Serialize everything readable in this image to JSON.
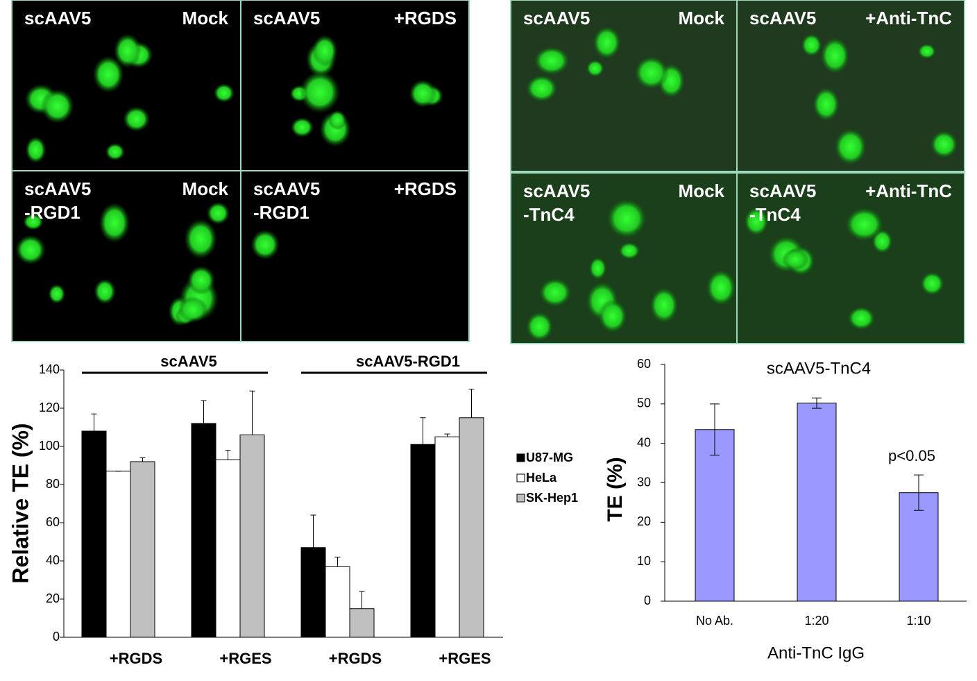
{
  "panels": [
    {
      "label_left": [
        "scAAV5"
      ],
      "label_right": "Mock"
    },
    {
      "label_left": [
        "scAAV5"
      ],
      "label_right": "+RGDS"
    },
    {
      "label_left": [
        "scAAV5",
        "-RGD1"
      ],
      "label_right": "Mock"
    },
    {
      "label_left": [
        "scAAV5",
        "-RGD1"
      ],
      "label_right": "+RGDS"
    },
    {
      "label_left": [
        "scAAV5"
      ],
      "label_right": "Mock"
    },
    {
      "label_left": [
        "scAAV5"
      ],
      "label_right": "+Anti-TnC"
    },
    {
      "label_left": [
        "scAAV5",
        "-TnC4"
      ],
      "label_right": "Mock"
    },
    {
      "label_left": [
        "scAAV5",
        "-TnC4"
      ],
      "label_right": "+Anti-TnC"
    }
  ],
  "chart_data": [
    {
      "type": "bar",
      "ylabel": "Relative TE (%)",
      "categories": [
        "+RGDS",
        "+RGES",
        "+RGDS",
        "+RGES"
      ],
      "group_labels": [
        "scAAV5",
        "scAAV5-RGD1"
      ],
      "series": [
        {
          "name": "U87-MG",
          "color": "#000000",
          "values": [
            108,
            112,
            47,
            101
          ],
          "errors": [
            9,
            12,
            17,
            14
          ]
        },
        {
          "name": "HeLa",
          "color": "#ffffff",
          "values": [
            87,
            93,
            37,
            105
          ],
          "errors": [
            0,
            5,
            5,
            1.5
          ]
        },
        {
          "name": "SK-Hep1",
          "color": "#c0c0c0",
          "values": [
            92,
            106,
            15,
            115
          ],
          "errors": [
            2,
            23,
            9,
            15
          ]
        }
      ],
      "ylim": [
        0,
        140
      ],
      "yticks": [
        0,
        20,
        40,
        60,
        80,
        100,
        120,
        140
      ]
    },
    {
      "type": "bar",
      "title": "scAAV5-TnC4",
      "xlabel": "Anti-TnC IgG",
      "ylabel": "TE (%)",
      "categories": [
        "No Ab.",
        "1:20",
        "1:10"
      ],
      "values": [
        43.5,
        50.2,
        27.5
      ],
      "errors": [
        6.5,
        1.3,
        4.5
      ],
      "color": "#9999ff",
      "annotation": "p<0.05",
      "ylim": [
        0,
        60
      ],
      "yticks": [
        0,
        10,
        20,
        30,
        40,
        50,
        60
      ]
    }
  ]
}
